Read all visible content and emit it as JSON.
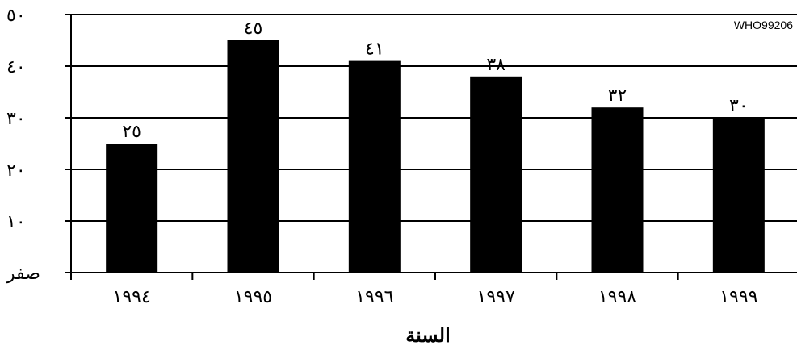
{
  "chart_data": {
    "type": "bar",
    "categories": [
      "١٩٩٤",
      "١٩٩٥",
      "١٩٩٦",
      "١٩٩٧",
      "١٩٩٨",
      "١٩٩٩"
    ],
    "values": [
      25,
      45,
      41,
      38,
      32,
      30
    ],
    "value_labels": [
      "٢٥",
      "٤٥",
      "٤١",
      "٣٨",
      "٣٢",
      "٣٠"
    ],
    "y_ticks": [
      {
        "value": 0,
        "label": "صفر"
      },
      {
        "value": 10,
        "label": "١٠"
      },
      {
        "value": 20,
        "label": "٢٠"
      },
      {
        "value": 30,
        "label": "٣٠"
      },
      {
        "value": 40,
        "label": "٤٠"
      },
      {
        "value": 50,
        "label": "٥٠"
      }
    ],
    "title": "",
    "xlabel": "السنة",
    "ylabel": "",
    "ylim": [
      0,
      50
    ],
    "grid": true,
    "bar_color": "#000000",
    "annotation": "WHO99206"
  }
}
